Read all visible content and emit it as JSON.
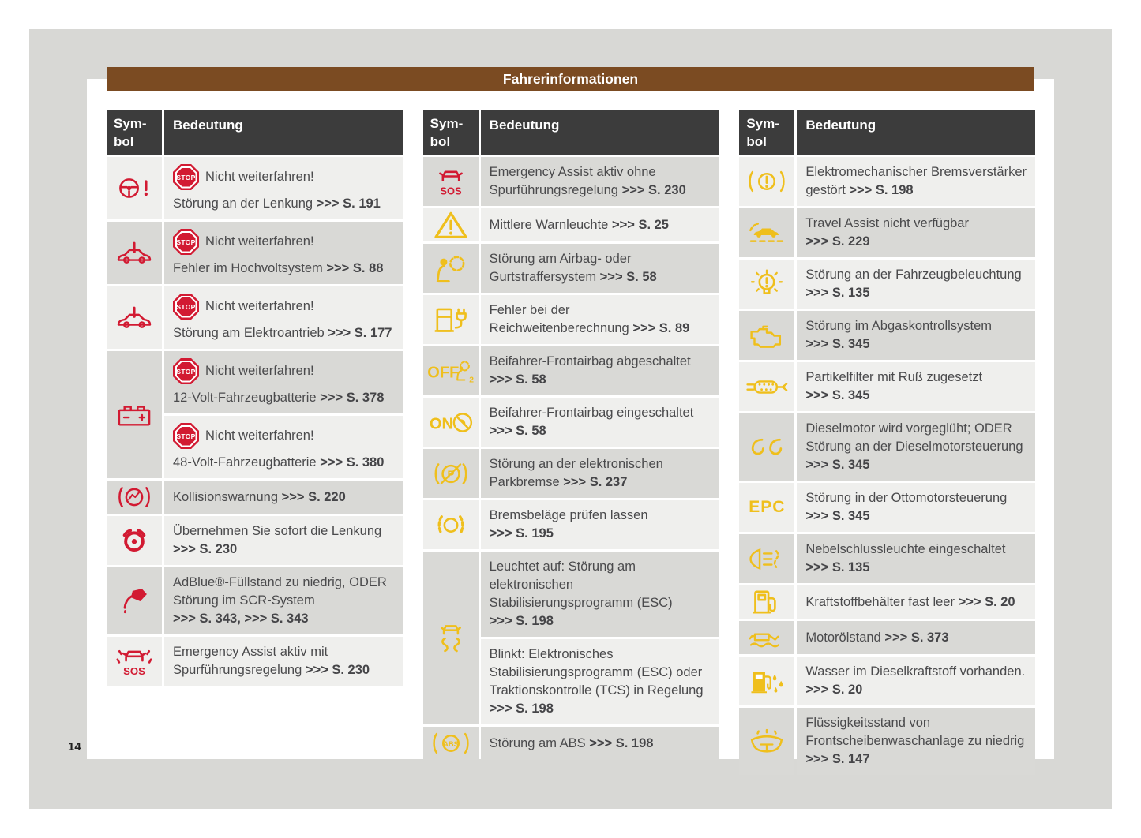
{
  "page": {
    "title": "Fahrerinformationen",
    "page_number": "14"
  },
  "colors": {
    "accent_brown": "#7B4B22",
    "table_header_dark": "#3C3C3C",
    "row_light": "#EFEFED",
    "row_dark": "#D9D9D6",
    "desk_gray": "#D8D8D5",
    "icon_red": "#D21A32",
    "icon_yellow": "#EFBF1C",
    "text": "#4A4A4C"
  },
  "table_header": {
    "symbol": "Sym-bol",
    "meaning": "Bedeutung"
  },
  "columns": [
    {
      "rows": [
        {
          "icon": {
            "name": "steering-wheel-warning-icon",
            "color": "#D21A32"
          },
          "cells": [
            {
              "bg": "l",
              "blocks": [
                {
                  "stop": "STOP",
                  "text": "Nicht weiterfahren!"
                },
                {
                  "text": "Störung an der Lenkung",
                  "ref": ">>> S. 191"
                }
              ]
            }
          ]
        },
        {
          "icon": {
            "name": "car-warning-icon",
            "color": "#D21A32"
          },
          "cells": [
            {
              "bg": "d",
              "blocks": [
                {
                  "stop": "STOP",
                  "text": "Nicht weiterfahren!"
                },
                {
                  "text": "Fehler im Hochvoltsystem",
                  "ref": ">>> S. 88"
                }
              ]
            }
          ]
        },
        {
          "icon": {
            "name": "car-warning-icon",
            "color": "#D21A32"
          },
          "cells": [
            {
              "bg": "l",
              "blocks": [
                {
                  "stop": "STOP",
                  "text": "Nicht weiterfahren!"
                },
                {
                  "text": "Störung am Elektroantrieb",
                  "ref": ">>> S. 177"
                }
              ]
            }
          ]
        },
        {
          "icon": {
            "name": "battery-icon",
            "color": "#D21A32"
          },
          "cells": [
            {
              "bg": "d",
              "blocks": [
                {
                  "stop": "STOP",
                  "text": "Nicht weiterfahren!"
                },
                {
                  "text": "12-Volt-Fahrzeugbatterie",
                  "ref": ">>> S. 378"
                }
              ]
            },
            {
              "bg": "l",
              "blocks": [
                {
                  "stop": "STOP",
                  "text": "Nicht weiterfahren!"
                },
                {
                  "text": "48-Volt-Fahrzeugbatterie",
                  "ref": ">>> S. 380"
                }
              ]
            }
          ]
        },
        {
          "icon": {
            "name": "collision-warning-icon",
            "color": "#D21A32"
          },
          "cells": [
            {
              "bg": "d",
              "blocks": [
                {
                  "text": "Kollisionswarnung",
                  "ref": ">>> S. 220"
                }
              ]
            }
          ]
        },
        {
          "icon": {
            "name": "hands-on-steering-wheel-icon",
            "color": "#D21A32"
          },
          "cells": [
            {
              "bg": "l",
              "blocks": [
                {
                  "text": "Übernehmen Sie sofort die Lenkung",
                  "ref": ">>> S. 230"
                }
              ]
            }
          ]
        },
        {
          "icon": {
            "name": "adblue-refill-icon",
            "color": "#D21A32"
          },
          "cells": [
            {
              "bg": "d",
              "blocks": [
                {
                  "text": "AdBlue®-Füllstand zu niedrig, ODER Störung im SCR-System",
                  "ref": ">>> S. 343, >>> S. 343"
                }
              ]
            }
          ]
        },
        {
          "icon": {
            "name": "emergency-assist-lane-icon",
            "color": "#D21A32",
            "label": "SOS"
          },
          "cells": [
            {
              "bg": "l",
              "blocks": [
                {
                  "text": "Emergency Assist aktiv mit Spurführungsregelung",
                  "ref": ">>> S. 230"
                }
              ]
            }
          ]
        }
      ]
    },
    {
      "rows": [
        {
          "icon": {
            "name": "emergency-assist-icon",
            "color": "#D21A32",
            "label": "SOS"
          },
          "cells": [
            {
              "bg": "d",
              "blocks": [
                {
                  "text": "Emergency Assist aktiv ohne Spurführungsregelung",
                  "ref": ">>> S. 230"
                }
              ]
            }
          ]
        },
        {
          "icon": {
            "name": "warning-triangle-icon",
            "color": "#EFBF1C"
          },
          "cells": [
            {
              "bg": "l",
              "blocks": [
                {
                  "text": "Mittlere Warnleuchte",
                  "ref": ">>> S. 25"
                }
              ]
            }
          ]
        },
        {
          "icon": {
            "name": "airbag-warning-icon",
            "color": "#EFBF1C"
          },
          "cells": [
            {
              "bg": "d",
              "blocks": [
                {
                  "text": "Störung am Airbag- oder Gurtstraffersystem",
                  "ref": ">>> S. 58"
                }
              ]
            }
          ]
        },
        {
          "icon": {
            "name": "charging-station-icon",
            "color": "#EFBF1C"
          },
          "cells": [
            {
              "bg": "l",
              "blocks": [
                {
                  "text": "Fehler bei der Reichweitenberechnung",
                  "ref": ">>> S. 89"
                }
              ]
            }
          ]
        },
        {
          "icon": {
            "name": "airbag-off-icon",
            "color": "#EFBF1C",
            "label": "OFF"
          },
          "cells": [
            {
              "bg": "d",
              "blocks": [
                {
                  "text": "Beifahrer-Frontairbag abgeschaltet",
                  "ref": ">>> S. 58"
                }
              ]
            }
          ]
        },
        {
          "icon": {
            "name": "airbag-on-icon",
            "color": "#EFBF1C",
            "label": "ON"
          },
          "cells": [
            {
              "bg": "l",
              "blocks": [
                {
                  "text": "Beifahrer-Frontairbag eingeschaltet",
                  "ref": ">>> S. 58"
                }
              ]
            }
          ]
        },
        {
          "icon": {
            "name": "parking-brake-fault-icon",
            "color": "#EFBF1C",
            "label": "P"
          },
          "cells": [
            {
              "bg": "d",
              "blocks": [
                {
                  "text": "Störung an der elektronischen Parkbremse",
                  "ref": ">>> S. 237"
                }
              ]
            }
          ]
        },
        {
          "icon": {
            "name": "brake-pads-icon",
            "color": "#EFBF1C"
          },
          "cells": [
            {
              "bg": "l",
              "blocks": [
                {
                  "text": "Bremsbeläge prüfen lassen",
                  "ref": ">>> S. 195"
                }
              ]
            }
          ]
        },
        {
          "icon": {
            "name": "esc-skid-icon",
            "color": "#EFBF1C"
          },
          "cells": [
            {
              "bg": "d",
              "blocks": [
                {
                  "text": "Leuchtet auf: Störung am elektronischen Stabilisierungsprogramm (ESC)",
                  "ref": ">>> S. 198"
                }
              ]
            },
            {
              "bg": "l",
              "blocks": [
                {
                  "text": "Blinkt: Elektronisches Stabilisierungsprogramm (ESC) oder Traktionskontrolle (TCS) in Regelung",
                  "ref": ">>> S. 198"
                }
              ]
            }
          ]
        },
        {
          "icon": {
            "name": "abs-warning-icon",
            "color": "#EFBF1C",
            "label": "ABS"
          },
          "cells": [
            {
              "bg": "d",
              "blocks": [
                {
                  "text": "Störung am ABS",
                  "ref": ">>> S. 198"
                }
              ]
            }
          ]
        }
      ]
    },
    {
      "rows": [
        {
          "icon": {
            "name": "brake-booster-warning-icon",
            "color": "#EFBF1C"
          },
          "cells": [
            {
              "bg": "l",
              "blocks": [
                {
                  "text": "Elektromechanischer Bremsverstärker gestört",
                  "ref": ">>> S. 198"
                }
              ]
            }
          ]
        },
        {
          "icon": {
            "name": "travel-assist-icon",
            "color": "#EFBF1C"
          },
          "cells": [
            {
              "bg": "d",
              "blocks": [
                {
                  "text": "Travel Assist nicht verfügbar",
                  "ref": ">>> S. 229"
                }
              ]
            }
          ]
        },
        {
          "icon": {
            "name": "light-bulb-fault-icon",
            "color": "#EFBF1C"
          },
          "cells": [
            {
              "bg": "l",
              "blocks": [
                {
                  "text": "Störung an der Fahrzeugbeleuchtung",
                  "ref": ">>> S. 135"
                }
              ]
            }
          ]
        },
        {
          "icon": {
            "name": "check-engine-icon",
            "color": "#EFBF1C"
          },
          "cells": [
            {
              "bg": "d",
              "blocks": [
                {
                  "text": "Störung im Abgaskontrollsystem",
                  "ref": ">>> S. 345"
                }
              ]
            }
          ]
        },
        {
          "icon": {
            "name": "particulate-filter-icon",
            "color": "#EFBF1C"
          },
          "cells": [
            {
              "bg": "l",
              "blocks": [
                {
                  "text": "Partikelfilter mit Ruß zugesetzt",
                  "ref": ">>> S. 345"
                }
              ]
            }
          ]
        },
        {
          "icon": {
            "name": "glow-plug-icon",
            "color": "#EFBF1C"
          },
          "cells": [
            {
              "bg": "d",
              "blocks": [
                {
                  "text": "Dieselmotor wird vorgeglüht; ODER Störung an der Dieselmotorsteuerung",
                  "ref": ">>> S. 345"
                }
              ]
            }
          ]
        },
        {
          "icon": {
            "name": "epc-icon",
            "color": "#EFBF1C",
            "label": "EPC"
          },
          "cells": [
            {
              "bg": "l",
              "blocks": [
                {
                  "text": "Störung in der Ottomotorsteuerung",
                  "ref": ">>> S. 345"
                }
              ]
            }
          ]
        },
        {
          "icon": {
            "name": "rear-fog-light-icon",
            "color": "#EFBF1C"
          },
          "cells": [
            {
              "bg": "d",
              "blocks": [
                {
                  "text": "Nebelschlussleuchte eingeschaltet",
                  "ref": ">>> S. 135"
                }
              ]
            }
          ]
        },
        {
          "icon": {
            "name": "fuel-low-icon",
            "color": "#EFBF1C"
          },
          "cells": [
            {
              "bg": "l",
              "blocks": [
                {
                  "text": "Kraftstoffbehälter fast leer",
                  "ref": ">>> S. 20"
                }
              ]
            }
          ]
        },
        {
          "icon": {
            "name": "oil-level-icon",
            "color": "#EFBF1C"
          },
          "cells": [
            {
              "bg": "d",
              "blocks": [
                {
                  "text": "Motorölstand",
                  "ref": ">>> S. 373"
                }
              ]
            }
          ]
        },
        {
          "icon": {
            "name": "water-in-fuel-icon",
            "color": "#EFBF1C"
          },
          "cells": [
            {
              "bg": "l",
              "blocks": [
                {
                  "text": "Wasser im Dieselkraftstoff vorhanden.",
                  "ref": ">>> S. 20"
                }
              ]
            }
          ]
        },
        {
          "icon": {
            "name": "washer-fluid-icon",
            "color": "#EFBF1C"
          },
          "cells": [
            {
              "bg": "d",
              "blocks": [
                {
                  "text": "Flüssigkeitsstand von Frontscheibenwaschanlage zu niedrig",
                  "ref": ">>> S. 147"
                }
              ]
            }
          ]
        }
      ]
    }
  ]
}
